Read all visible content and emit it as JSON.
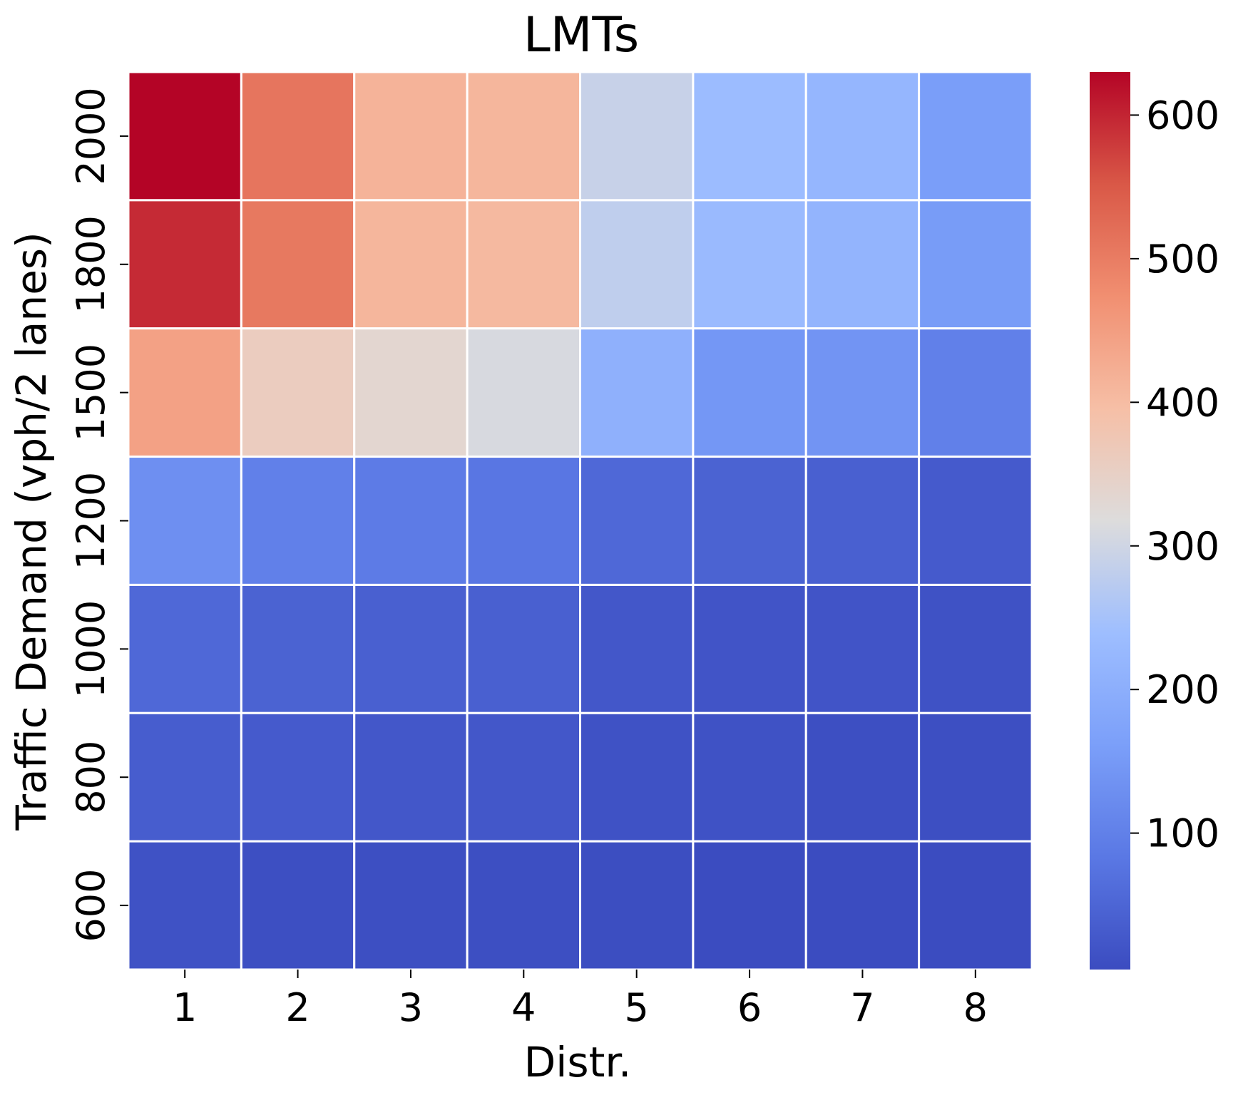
{
  "chart_data": {
    "type": "heatmap",
    "title": "LMTs",
    "xlabel": "Distr.",
    "ylabel": "Traffic Demand (vph/2 lanes)",
    "x_categories": [
      "1",
      "2",
      "3",
      "4",
      "5",
      "6",
      "7",
      "8"
    ],
    "y_categories": [
      "2000",
      "1800",
      "1500",
      "1200",
      "1000",
      "800",
      "600"
    ],
    "values": [
      [
        630,
        510,
        415,
        410,
        290,
        235,
        220,
        160
      ],
      [
        595,
        505,
        410,
        405,
        280,
        230,
        215,
        155
      ],
      [
        445,
        360,
        335,
        310,
        205,
        145,
        140,
        100
      ],
      [
        130,
        100,
        90,
        80,
        55,
        45,
        40,
        30
      ],
      [
        55,
        45,
        40,
        40,
        25,
        20,
        20,
        15
      ],
      [
        35,
        30,
        25,
        25,
        15,
        15,
        10,
        10
      ],
      [
        15,
        10,
        10,
        10,
        8,
        5,
        5,
        5
      ]
    ],
    "colormap": "coolwarm",
    "color_range": [
      5,
      630
    ],
    "colorbar_ticks": [
      "100",
      "200",
      "300",
      "400",
      "500",
      "600"
    ],
    "gridlines": "white",
    "legend": "colorbar right"
  }
}
